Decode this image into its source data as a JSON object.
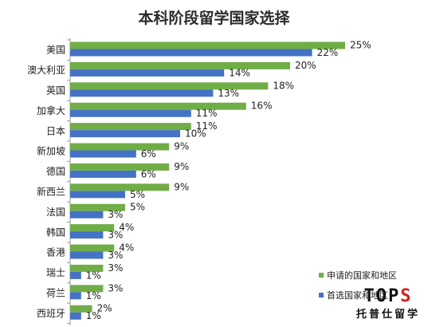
{
  "chart_data": {
    "type": "bar",
    "orientation": "horizontal",
    "title": "本科阶段留学国家选择",
    "categories": [
      "美国",
      "澳大利亚",
      "英国",
      "加拿大",
      "日本",
      "新加坡",
      "德国",
      "新西兰",
      "法国",
      "韩国",
      "香港",
      "瑞士",
      "荷兰",
      "西班牙"
    ],
    "series": [
      {
        "name": "申请的国家和地区",
        "color": "#70ad47",
        "values": [
          25,
          20,
          18,
          16,
          11,
          9,
          9,
          9,
          5,
          4,
          4,
          3,
          3,
          2
        ]
      },
      {
        "name": "首选国家和地区",
        "color": "#4472c4",
        "values": [
          22,
          14,
          13,
          11,
          10,
          6,
          6,
          5,
          3,
          3,
          3,
          1,
          1,
          1
        ]
      }
    ],
    "value_suffix": "%",
    "xlim": [
      0,
      25
    ],
    "grid": false,
    "legend": "bottom-right"
  },
  "watermark": {
    "logo_text": "TOPS",
    "text": "托普仕留学"
  }
}
